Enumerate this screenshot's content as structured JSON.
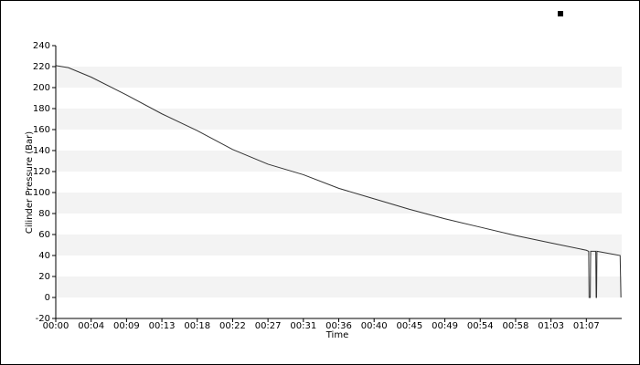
{
  "chart_data": {
    "type": "line",
    "x_label": "Time",
    "y_label": "Cilinder Pressure (Bar)",
    "xlim": [
      0,
      72
    ],
    "ylim": [
      -20,
      240
    ],
    "yticks": [
      -20,
      0,
      20,
      40,
      60,
      80,
      100,
      120,
      140,
      160,
      180,
      200,
      220,
      240
    ],
    "xticks": [
      {
        "value": 0,
        "label": "00:00"
      },
      {
        "value": 4.5,
        "label": "00:04"
      },
      {
        "value": 9,
        "label": "00:09"
      },
      {
        "value": 13.5,
        "label": "00:13"
      },
      {
        "value": 18,
        "label": "00:18"
      },
      {
        "value": 22.5,
        "label": "00:22"
      },
      {
        "value": 27,
        "label": "00:27"
      },
      {
        "value": 31.5,
        "label": "00:31"
      },
      {
        "value": 36,
        "label": "00:36"
      },
      {
        "value": 40.5,
        "label": "00:40"
      },
      {
        "value": 45,
        "label": "00:45"
      },
      {
        "value": 49.5,
        "label": "00:49"
      },
      {
        "value": 54,
        "label": "00:54"
      },
      {
        "value": 58.5,
        "label": "00:58"
      },
      {
        "value": 63,
        "label": "01:03"
      },
      {
        "value": 67.5,
        "label": "01:07"
      }
    ],
    "bands": true,
    "x": [
      0,
      1.6,
      4.5,
      9,
      13.5,
      18,
      22.5,
      27,
      31.5,
      36,
      40.5,
      45,
      49.5,
      54,
      58.5,
      63,
      67.5,
      67.8,
      67.85,
      68.0,
      68.05,
      68.7,
      68.75,
      68.8,
      68.85,
      71.8,
      71.9
    ],
    "series": [
      {
        "color": "#333333",
        "values": [
          221,
          219,
          210,
          193,
          175,
          159,
          141,
          127,
          117,
          104,
          94,
          84,
          75,
          67,
          59,
          52,
          45,
          44,
          0,
          0,
          44,
          44,
          0,
          0,
          44,
          40,
          0
        ]
      }
    ]
  }
}
